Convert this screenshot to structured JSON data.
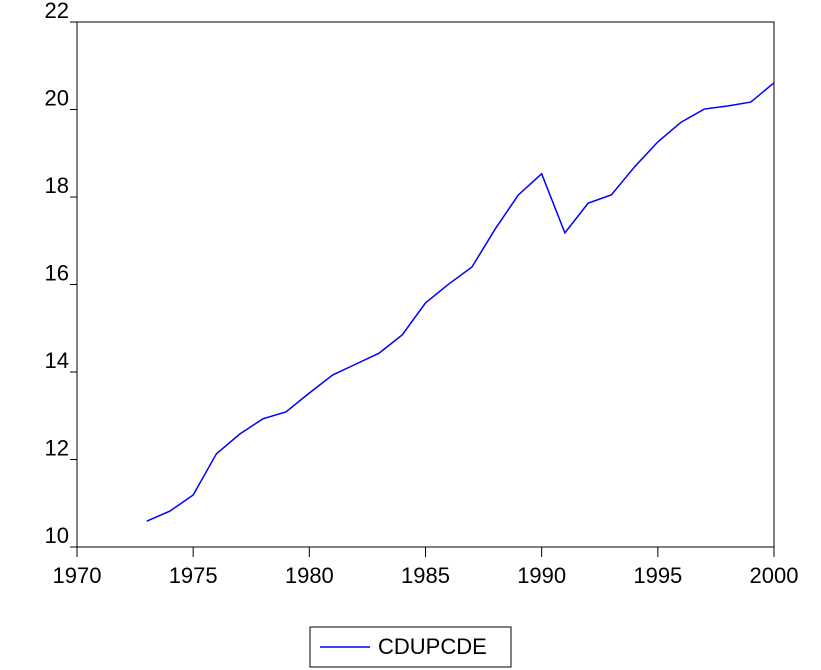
{
  "chart_data": {
    "type": "line",
    "x": [
      1973,
      1974,
      1975,
      1976,
      1977,
      1978,
      1979,
      1980,
      1981,
      1982,
      1983,
      1984,
      1985,
      1986,
      1987,
      1988,
      1989,
      1990,
      1991,
      1992,
      1993,
      1994,
      1995,
      1996,
      1997,
      1998,
      1999,
      2000
    ],
    "series": [
      {
        "name": "CDUPCDE",
        "color": "#0000ff",
        "values": [
          10.59,
          10.82,
          11.19,
          12.13,
          12.58,
          12.93,
          13.09,
          13.52,
          13.93,
          14.18,
          14.43,
          14.85,
          15.58,
          16.01,
          16.4,
          17.27,
          18.05,
          18.53,
          17.18,
          17.86,
          18.05,
          18.69,
          19.26,
          19.71,
          20.01,
          20.08,
          20.17,
          20.61
        ]
      }
    ],
    "xlim": [
      1970,
      2000
    ],
    "xticks": [
      1970,
      1975,
      1980,
      1985,
      1990,
      1995,
      2000
    ],
    "ylim": [
      10,
      22
    ],
    "yticks": [
      10,
      12,
      14,
      16,
      18,
      20,
      22
    ],
    "grid": false,
    "legend": "bottom"
  }
}
